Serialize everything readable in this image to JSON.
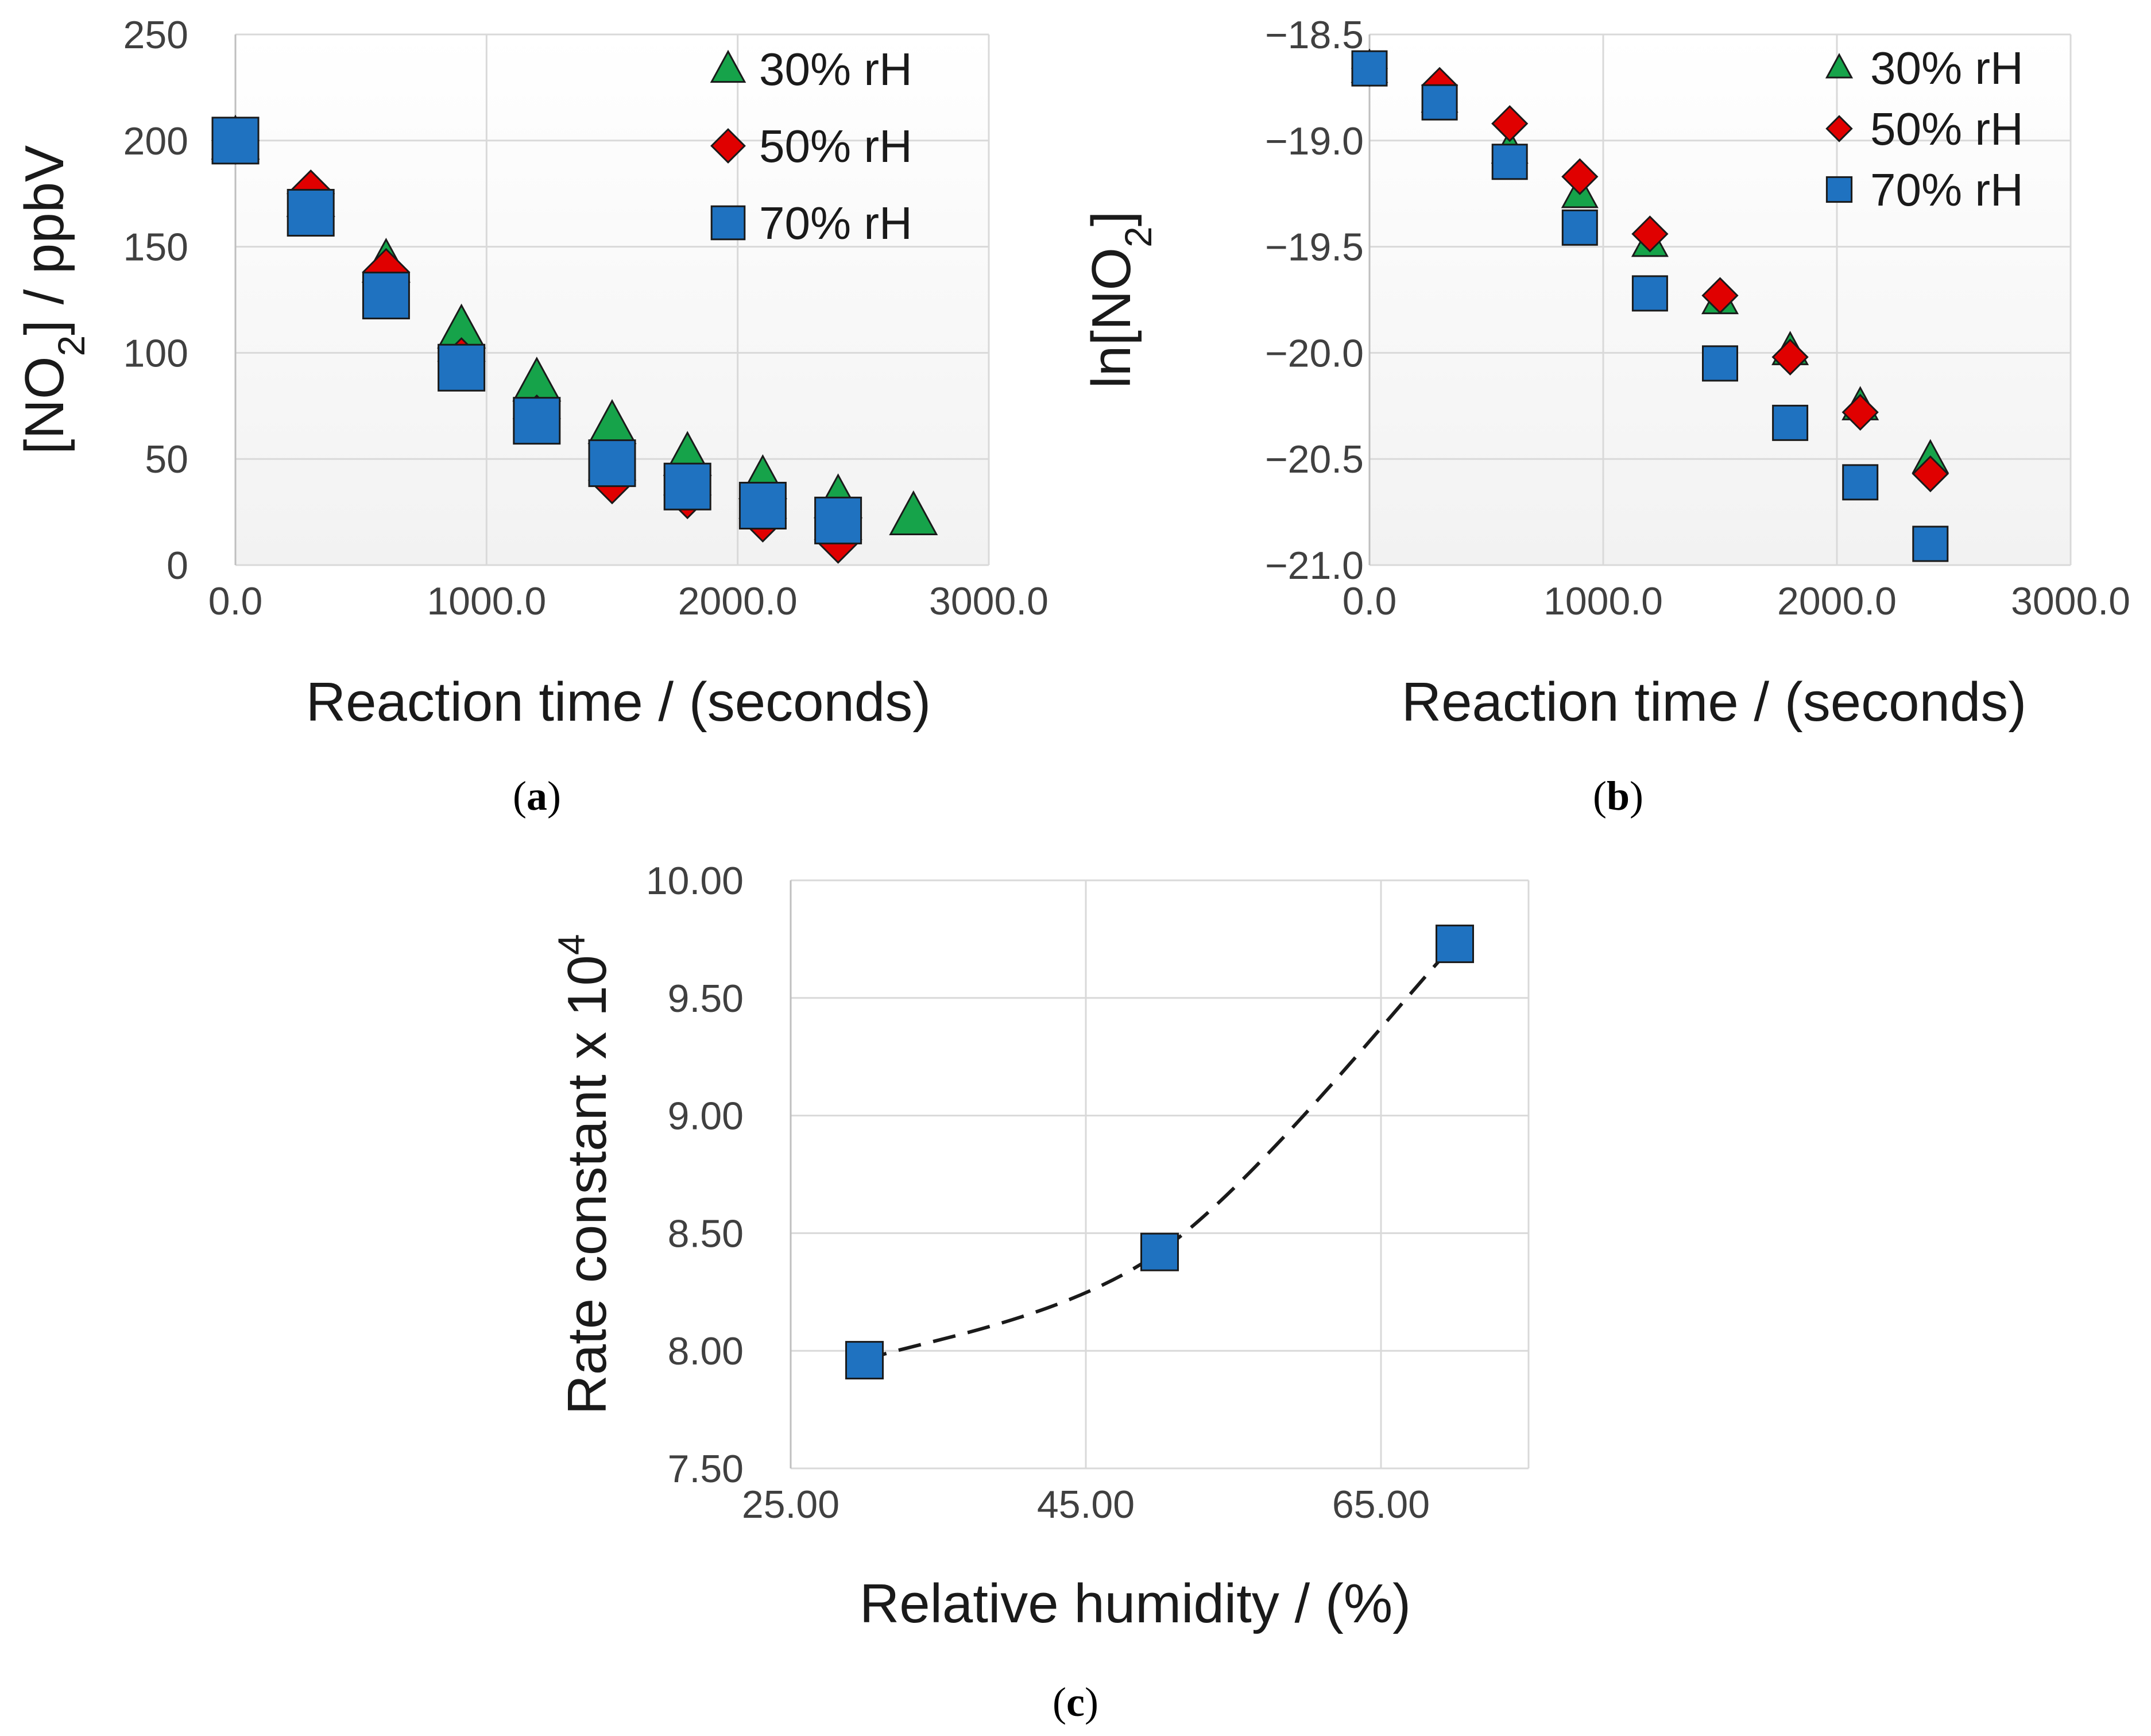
{
  "panel_labels": [
    "a",
    "b",
    "c"
  ],
  "colors": {
    "rh30": "#16a34a",
    "rh50": "#e00000",
    "rh70": "#1f72c0"
  },
  "chart_data": [
    {
      "type": "scatter",
      "xlabel": "Reaction time / (seconds)",
      "ylabel": "[NO2] / ppbV",
      "xlim": [
        0,
        3000
      ],
      "ylim": [
        0,
        250
      ],
      "xticks": [
        "0.0",
        "1000.0",
        "2000.0",
        "3000.0"
      ],
      "yticks": [
        "0",
        "50",
        "100",
        "150",
        "200",
        "250"
      ],
      "legend_position": "top-right",
      "grid": true,
      "series": [
        {
          "name": "30% rH",
          "marker": "triangle",
          "x": [
            0,
            300,
            600,
            900,
            1200,
            1500,
            1800,
            2100,
            2400,
            2700
          ],
          "y": [
            200,
            173,
            142,
            111,
            86,
            66,
            51,
            40,
            31,
            23
          ]
        },
        {
          "name": "50% rH",
          "marker": "diamond",
          "x": [
            0,
            300,
            600,
            900,
            1200,
            1500,
            1800,
            2100,
            2400
          ],
          "y": [
            200,
            175,
            138,
            96,
            69,
            40,
            33,
            22,
            12
          ]
        },
        {
          "name": "70% rH",
          "marker": "square",
          "x": [
            0,
            300,
            600,
            900,
            1200,
            1500,
            1800,
            2100,
            2400
          ],
          "y": [
            200,
            166,
            127,
            93,
            68,
            48,
            37,
            28,
            21
          ]
        }
      ]
    },
    {
      "type": "scatter",
      "xlabel": "Reaction time / (seconds)",
      "ylabel": "ln[NO2]",
      "xlim": [
        0,
        3000
      ],
      "ylim": [
        -21.0,
        -18.5
      ],
      "xticks": [
        "0.0",
        "1000.0",
        "2000.0",
        "3000.0"
      ],
      "yticks": [
        "-18.5",
        "-19.0",
        "-19.5",
        "-20.0",
        "-20.5",
        "-21.0"
      ],
      "legend_position": "top-right",
      "grid": true,
      "series": [
        {
          "name": "30% rH",
          "marker": "triangle",
          "x": [
            0,
            300,
            600,
            900,
            1200,
            1500,
            1800,
            2100,
            2400
          ],
          "y": [
            -18.66,
            -18.8,
            -19.04,
            -19.25,
            -19.48,
            -19.75,
            -19.99,
            -20.25,
            -20.5
          ]
        },
        {
          "name": "50% rH",
          "marker": "diamond",
          "x": [
            0,
            300,
            600,
            900,
            1200,
            1500,
            1800,
            2100,
            2400
          ],
          "y": [
            -18.66,
            -18.74,
            -18.92,
            -19.17,
            -19.44,
            -19.73,
            -20.02,
            -20.28,
            -20.57
          ]
        },
        {
          "name": "70% rH",
          "marker": "square",
          "x": [
            0,
            300,
            600,
            900,
            1200,
            1500,
            1800,
            2100,
            2400
          ],
          "y": [
            -18.66,
            -18.82,
            -19.1,
            -19.41,
            -19.72,
            -20.05,
            -20.33,
            -20.61,
            -20.9
          ]
        }
      ]
    },
    {
      "type": "line",
      "xlabel": "Relative humidity / (%)",
      "ylabel": "Rate constant x 10^4",
      "xlim": [
        25,
        75
      ],
      "ylim": [
        7.5,
        10.0
      ],
      "xticks": [
        "25.00",
        "45.00",
        "65.00"
      ],
      "yticks": [
        "10.00",
        "9.50",
        "9.00",
        "8.50",
        "8.00",
        "7.50"
      ],
      "grid": true,
      "line_style": "dashed",
      "series": [
        {
          "marker": "square",
          "x": [
            30,
            50,
            70
          ],
          "y": [
            7.96,
            8.42,
            9.73
          ]
        }
      ]
    }
  ]
}
